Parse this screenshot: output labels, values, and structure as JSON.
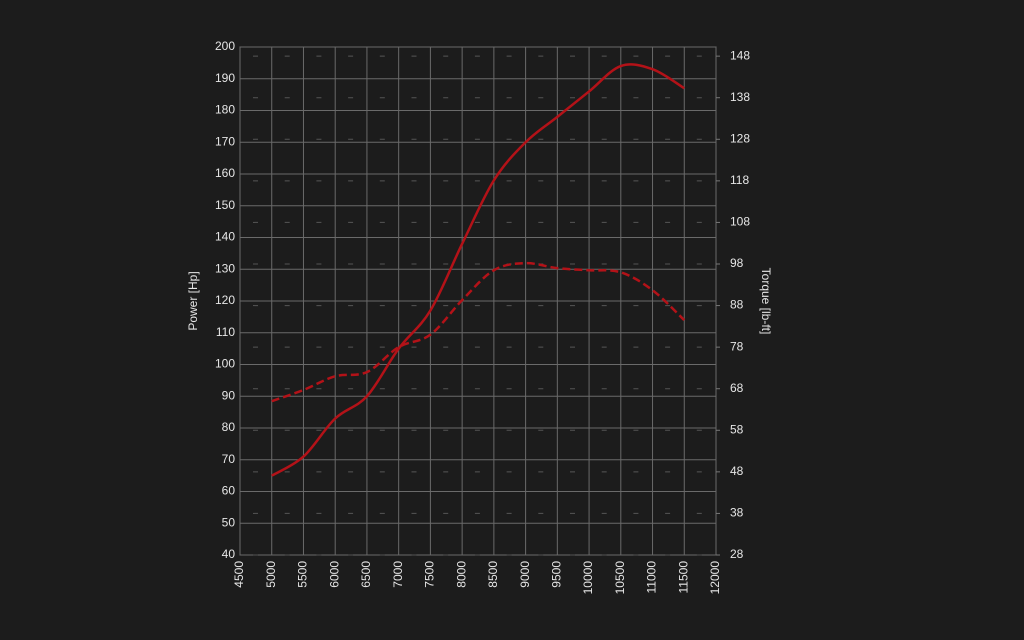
{
  "chart_data": {
    "type": "line",
    "x": [
      5000,
      5500,
      6000,
      6500,
      7000,
      7500,
      8000,
      8500,
      9000,
      9500,
      10000,
      10500,
      11000,
      11500
    ],
    "series": [
      {
        "name": "Power",
        "color": "#b31218",
        "dash": false,
        "values": [
          65,
          71,
          83,
          90,
          105,
          117,
          138,
          158,
          170,
          178,
          186,
          194,
          193,
          187
        ]
      },
      {
        "name": "Torque",
        "color": "#b31218",
        "dash": true,
        "axis": "y2",
        "values": [
          65,
          67.7,
          71,
          72,
          78,
          81,
          89.3,
          96.5,
          98.2,
          97,
          96.5,
          96,
          91.7,
          84.5
        ]
      }
    ],
    "ylabel": "Power [Hp]",
    "y2label": "Torque [lb-ft]",
    "xlim": [
      4500,
      12000
    ],
    "xticks": [
      4500,
      5000,
      5500,
      6000,
      6500,
      7000,
      7500,
      8000,
      8500,
      9000,
      9500,
      10000,
      10500,
      11000,
      11500,
      12000
    ],
    "ylim": [
      40,
      200
    ],
    "yticks": [
      40,
      50,
      60,
      70,
      80,
      90,
      100,
      110,
      120,
      130,
      140,
      150,
      160,
      170,
      180,
      190,
      200
    ],
    "y2lim": [
      28,
      150.2
    ],
    "y2ticks": [
      28,
      38,
      48,
      58,
      68,
      78,
      88,
      98,
      108,
      118,
      128,
      138,
      148
    ],
    "grid": true
  }
}
